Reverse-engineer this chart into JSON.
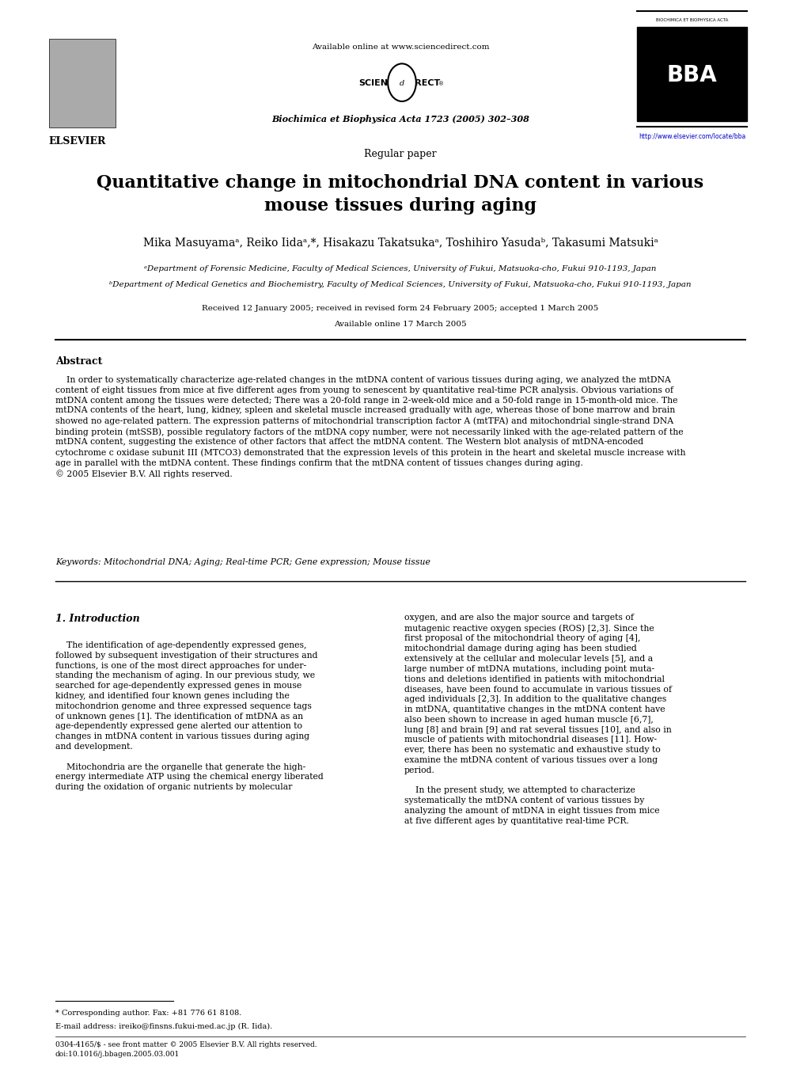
{
  "page_width": 9.92,
  "page_height": 13.23,
  "bg_color": "#ffffff",
  "header": {
    "available_online": "Available online at www.sciencedirect.com",
    "journal": "Biochimica et Biophysica Acta 1723 (2005) 302–308",
    "url": "http://www.elsevier.com/locate/bba",
    "section": "Regular paper"
  },
  "title": "Quantitative change in mitochondrial DNA content in various\nmouse tissues during aging",
  "authors": "Mika Masuyamaᵃ, Reiko Iidaᵃ,*, Hisakazu Takatsukaᵃ, Toshihiro Yasudaᵇ, Takasumi Matsukiᵃ",
  "affil_a": "ᵃDepartment of Forensic Medicine, Faculty of Medical Sciences, University of Fukui, Matsuoka-cho, Fukui 910-1193, Japan",
  "affil_b": "ᵇDepartment of Medical Genetics and Biochemistry, Faculty of Medical Sciences, University of Fukui, Matsuoka-cho, Fukui 910-1193, Japan",
  "dates": "Received 12 January 2005; received in revised form 24 February 2005; accepted 1 March 2005",
  "available": "Available online 17 March 2005",
  "abstract_heading": "Abstract",
  "abstract_text": "    In order to systematically characterize age-related changes in the mtDNA content of various tissues during aging, we analyzed the mtDNA\ncontent of eight tissues from mice at five different ages from young to senescent by quantitative real-time PCR analysis. Obvious variations of\nmtDNA content among the tissues were detected; There was a 20-fold range in 2-week-old mice and a 50-fold range in 15-month-old mice. The\nmtDNA contents of the heart, lung, kidney, spleen and skeletal muscle increased gradually with age, whereas those of bone marrow and brain\nshowed no age-related pattern. The expression patterns of mitochondrial transcription factor A (mtTFA) and mitochondrial single-strand DNA\nbinding protein (mtSSB), possible regulatory factors of the mtDNA copy number, were not necessarily linked with the age-related pattern of the\nmtDNA content, suggesting the existence of other factors that affect the mtDNA content. The Western blot analysis of mtDNA-encoded\ncytochrome c oxidase subunit III (MTCO3) demonstrated that the expression levels of this protein in the heart and skeletal muscle increase with\nage in parallel with the mtDNA content. These findings confirm that the mtDNA content of tissues changes during aging.\n© 2005 Elsevier B.V. All rights reserved.",
  "keywords": "Keywords: Mitochondrial DNA; Aging; Real-time PCR; Gene expression; Mouse tissue",
  "intro_heading": "1. Introduction",
  "intro_left": "    The identification of age-dependently expressed genes,\nfollowed by subsequent investigation of their structures and\nfunctions, is one of the most direct approaches for under-\nstanding the mechanism of aging. In our previous study, we\nsearched for age-dependently expressed genes in mouse\nkidney, and identified four known genes including the\nmitochondrion genome and three expressed sequence tags\nof unknown genes [1]. The identification of mtDNA as an\nage-dependently expressed gene alerted our attention to\nchanges in mtDNA content in various tissues during aging\nand development.\n\n    Mitochondria are the organelle that generate the high-\nenergy intermediate ATP using the chemical energy liberated\nduring the oxidation of organic nutrients by molecular",
  "intro_right": "oxygen, and are also the major source and targets of\nmutagenic reactive oxygen species (ROS) [2,3]. Since the\nfirst proposal of the mitochondrial theory of aging [4],\nmitochondrial damage during aging has been studied\nextensively at the cellular and molecular levels [5], and a\nlarge number of mtDNA mutations, including point muta-\ntions and deletions identified in patients with mitochondrial\ndiseases, have been found to accumulate in various tissues of\naged individuals [2,3]. In addition to the qualitative changes\nin mtDNA, quantitative changes in the mtDNA content have\nalso been shown to increase in aged human muscle [6,7],\nlung [8] and brain [9] and rat several tissues [10], and also in\nmuscle of patients with mitochondrial diseases [11]. How-\never, there has been no systematic and exhaustive study to\nexamine the mtDNA content of various tissues over a long\nperiod.\n\n    In the present study, we attempted to characterize\nsystematically the mtDNA content of various tissues by\nanalyzing the amount of mtDNA in eight tissues from mice\nat five different ages by quantitative real-time PCR.",
  "footnote_star": "* Corresponding author. Fax: +81 776 61 8108.",
  "footnote_email": "E-mail address: ireiko@finsns.fukui-med.ac.jp (R. Iida).",
  "footnote_bottom": "0304-4165/$ - see front matter © 2005 Elsevier B.V. All rights reserved.\ndoi:10.1016/j.bbagen.2005.03.001"
}
